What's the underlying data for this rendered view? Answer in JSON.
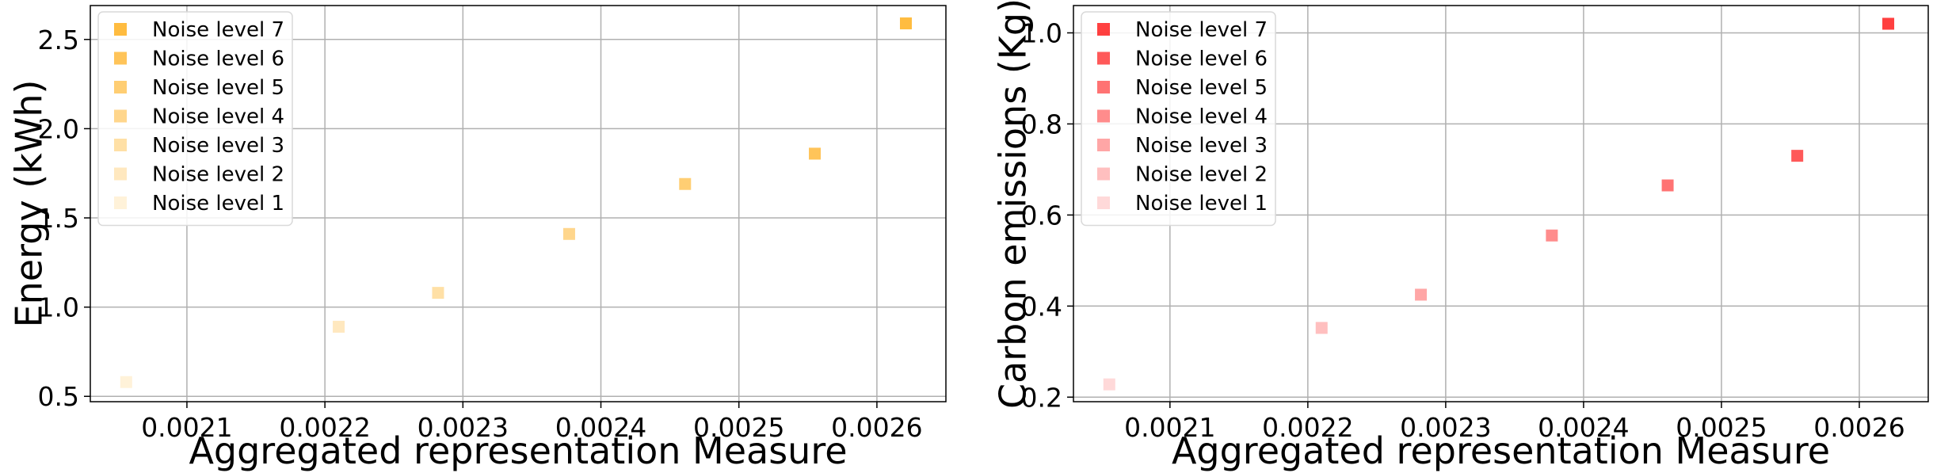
{
  "chart_data": [
    {
      "type": "scatter",
      "xlabel": "Aggregated representation Measure",
      "ylabel": "Energy (kWh)",
      "xlim": [
        0.00203,
        0.00265
      ],
      "ylim": [
        0.47,
        2.69
      ],
      "xticks": [
        0.0021,
        0.0022,
        0.0023,
        0.0024,
        0.0025,
        0.0026
      ],
      "xtick_labels": [
        "0.0021",
        "0.0022",
        "0.0023",
        "0.0024",
        "0.0025",
        "0.0026"
      ],
      "yticks": [
        0.5,
        1.0,
        1.5,
        2.0,
        2.5
      ],
      "ytick_labels": [
        "0.5",
        "1.0",
        "1.5",
        "2.0",
        "2.5"
      ],
      "grid": true,
      "legend_position": "top-left",
      "marker": "square",
      "color": "#ffa500",
      "series": [
        {
          "name": "Noise level 7",
          "x": [
            0.002621
          ],
          "y": [
            2.59
          ],
          "opacity": 0.75
        },
        {
          "name": "Noise level 6",
          "x": [
            0.002555
          ],
          "y": [
            1.86
          ],
          "opacity": 0.65
        },
        {
          "name": "Noise level 5",
          "x": [
            0.002461
          ],
          "y": [
            1.69
          ],
          "opacity": 0.55
        },
        {
          "name": "Noise level 4",
          "x": [
            0.002377
          ],
          "y": [
            1.41
          ],
          "opacity": 0.45
        },
        {
          "name": "Noise level 3",
          "x": [
            0.002282
          ],
          "y": [
            1.08
          ],
          "opacity": 0.35
        },
        {
          "name": "Noise level 2",
          "x": [
            0.00221
          ],
          "y": [
            0.89
          ],
          "opacity": 0.25
        },
        {
          "name": "Noise level 1",
          "x": [
            0.002056
          ],
          "y": [
            0.58
          ],
          "opacity": 0.15
        }
      ]
    },
    {
      "type": "scatter",
      "xlabel": "Aggregated representation Measure",
      "ylabel": "Carbon emissions (Kg)",
      "xlim": [
        0.00203,
        0.00265
      ],
      "ylim": [
        0.19,
        1.06
      ],
      "xticks": [
        0.0021,
        0.0022,
        0.0023,
        0.0024,
        0.0025,
        0.0026
      ],
      "xtick_labels": [
        "0.0021",
        "0.0022",
        "0.0023",
        "0.0024",
        "0.0025",
        "0.0026"
      ],
      "yticks": [
        0.2,
        0.4,
        0.6,
        0.8,
        1.0
      ],
      "ytick_labels": [
        "0.2",
        "0.4",
        "0.6",
        "0.8",
        "1.0"
      ],
      "grid": true,
      "legend_position": "top-left",
      "marker": "square",
      "color": "#ff0000",
      "series": [
        {
          "name": "Noise level 7",
          "x": [
            0.002621
          ],
          "y": [
            1.02
          ],
          "opacity": 0.75
        },
        {
          "name": "Noise level 6",
          "x": [
            0.002555
          ],
          "y": [
            0.73
          ],
          "opacity": 0.65
        },
        {
          "name": "Noise level 5",
          "x": [
            0.002461
          ],
          "y": [
            0.665
          ],
          "opacity": 0.55
        },
        {
          "name": "Noise level 4",
          "x": [
            0.002377
          ],
          "y": [
            0.555
          ],
          "opacity": 0.45
        },
        {
          "name": "Noise level 3",
          "x": [
            0.002282
          ],
          "y": [
            0.425
          ],
          "opacity": 0.35
        },
        {
          "name": "Noise level 2",
          "x": [
            0.00221
          ],
          "y": [
            0.352
          ],
          "opacity": 0.25
        },
        {
          "name": "Noise level 1",
          "x": [
            0.002056
          ],
          "y": [
            0.228
          ],
          "opacity": 0.15
        }
      ]
    }
  ]
}
